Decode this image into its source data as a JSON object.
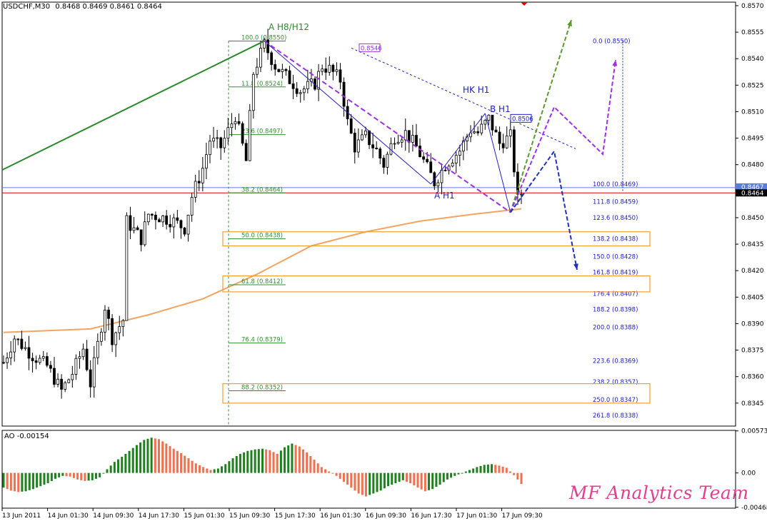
{
  "header": {
    "symbol": "USDCHF,M30",
    "ohlc": "0.8468 0.8469 0.8461 0.8464"
  },
  "indicator": {
    "title": "AO -0.00154"
  },
  "watermark": "MF Analytics Team",
  "colors": {
    "bull": "#000000",
    "ma": "#f4a460",
    "bid": "#e00000",
    "ask": "#5b7fd6",
    "fib_left": "#2f8f2f",
    "fib_right": "#2020c0",
    "zone": "#f0a030",
    "ao_up": "#208020",
    "ao_down": "#f07050",
    "wm_red": "#e04090",
    "wm_blue": "#3040e0"
  },
  "wave_labels": {
    "a_h8_h12": "A H8/H12",
    "hk_h1": "HK H1",
    "b_h1": "B H1",
    "a_h1": "A H1"
  },
  "chart_data": [
    {
      "type": "candlestick",
      "title": "USDCHF,M30",
      "ylim": [
        0.8332,
        0.8572
      ],
      "y_ticks": [
        "0.8570",
        "0.8555",
        "0.8540",
        "0.8525",
        "0.8510",
        "0.8495",
        "0.8480",
        "0.8465",
        "0.8450",
        "0.8435",
        "0.8420",
        "0.8405",
        "0.8390",
        "0.8375",
        "0.8360",
        "0.8345"
      ],
      "x_ticks": [
        "13 Jun 2011",
        "14 Jun 01:30",
        "14 Jun 09:30",
        "14 Jun 17:30",
        "15 Jun 01:30",
        "15 Jun 09:30",
        "15 Jun 17:30",
        "16 Jun 01:30",
        "16 Jun 09:30",
        "16 Jun 17:30",
        "17 Jun 01:30",
        "17 Jun 09:30"
      ],
      "price_path": [
        [
          0,
          0.8368
        ],
        [
          3,
          0.8382
        ],
        [
          8,
          0.8372
        ],
        [
          12,
          0.8366
        ],
        [
          16,
          0.8352
        ],
        [
          19,
          0.8362
        ],
        [
          22,
          0.8376
        ],
        [
          24,
          0.8356
        ],
        [
          28,
          0.84
        ],
        [
          30,
          0.8382
        ],
        [
          33,
          0.8392
        ],
        [
          34,
          0.8448
        ],
        [
          38,
          0.8438
        ],
        [
          40,
          0.8452
        ],
        [
          44,
          0.845
        ],
        [
          47,
          0.8448
        ],
        [
          50,
          0.8444
        ],
        [
          52,
          0.8462
        ],
        [
          55,
          0.8478
        ],
        [
          57,
          0.8494
        ],
        [
          60,
          0.849
        ],
        [
          64,
          0.8508
        ],
        [
          67,
          0.8482
        ],
        [
          69,
          0.8532
        ],
        [
          72,
          0.8548
        ],
        [
          75,
          0.8536
        ],
        [
          78,
          0.853
        ],
        [
          82,
          0.8522
        ],
        [
          86,
          0.8526
        ],
        [
          88,
          0.8536
        ],
        [
          90,
          0.8534
        ],
        [
          93,
          0.8528
        ],
        [
          95,
          0.8504
        ],
        [
          97,
          0.849
        ],
        [
          100,
          0.8496
        ],
        [
          103,
          0.8488
        ],
        [
          105,
          0.848
        ],
        [
          108,
          0.8496
        ],
        [
          111,
          0.8498
        ],
        [
          114,
          0.849
        ],
        [
          117,
          0.8478
        ],
        [
          119,
          0.847
        ],
        [
          122,
          0.848
        ],
        [
          126,
          0.8488
        ],
        [
          129,
          0.85
        ],
        [
          131,
          0.8498
        ],
        [
          134,
          0.8506
        ],
        [
          137,
          0.8492
        ],
        [
          140,
          0.8496
        ],
        [
          142,
          0.846
        ],
        [
          143,
          0.8464
        ]
      ],
      "price_lines": {
        "ask": "0.8467",
        "bid": "0.8464"
      },
      "moving_average": [
        [
          0,
          0.8385
        ],
        [
          24,
          0.8387
        ],
        [
          40,
          0.8395
        ],
        [
          55,
          0.8404
        ],
        [
          70,
          0.8418
        ],
        [
          85,
          0.8434
        ],
        [
          100,
          0.8442
        ],
        [
          115,
          0.8448
        ],
        [
          130,
          0.8452
        ],
        [
          143,
          0.8455
        ]
      ],
      "fib_retracement": {
        "levels": [
          {
            "label": "100.0 (0.8550)",
            "value": 0.855
          },
          {
            "label": "11.8 (0.8524)",
            "value": 0.8524
          },
          {
            "label": "23.6 (0.8497)",
            "value": 0.8497
          },
          {
            "label": "38.2 (0.8464)",
            "value": 0.8464
          },
          {
            "label": "50.0 (0.8438)",
            "value": 0.8438
          },
          {
            "label": "61.8 (0.8412)",
            "value": 0.8412
          },
          {
            "label": "76.4 (0.8379)",
            "value": 0.8379
          },
          {
            "label": "88.2 (0.8352)",
            "value": 0.8352
          }
        ]
      },
      "fib_extension": {
        "levels": [
          {
            "label": "0.0 (0.8550)",
            "value": 0.855
          },
          {
            "label": "100.0 (0.8469)",
            "value": 0.8469
          },
          {
            "label": "111.8 (0.8459)",
            "value": 0.8459
          },
          {
            "label": "123.6 (0.8450)",
            "value": 0.845
          },
          {
            "label": "138.2 (0.8438)",
            "value": 0.8438
          },
          {
            "label": "150.0 (0.8428)",
            "value": 0.8428
          },
          {
            "label": "161.8 (0.8419)",
            "value": 0.8419
          },
          {
            "label": "176.4 (0.8407)",
            "value": 0.8407
          },
          {
            "label": "188.2 (0.8398)",
            "value": 0.8398
          },
          {
            "label": "200.0 (0.8388)",
            "value": 0.8388
          },
          {
            "label": "223.6 (0.8369)",
            "value": 0.8369
          },
          {
            "label": "238.2 (0.8357)",
            "value": 0.8357
          },
          {
            "label": "250.0 (0.8347)",
            "value": 0.8347
          },
          {
            "label": "261.8 (0.8338)",
            "value": 0.8338
          }
        ]
      },
      "price_tags": [
        "0.8546",
        "0.8506"
      ],
      "zones": [
        [
          0.8434,
          0.8442
        ],
        [
          0.8408,
          0.8417
        ],
        [
          0.8345,
          0.8356
        ]
      ]
    },
    {
      "type": "bar",
      "title": "AO -0.00154",
      "ylim": [
        -0.0048,
        0.0058
      ],
      "y_ticks": [
        "0.00573",
        "0.00",
        "-0.00468"
      ],
      "values": [
        -0.002,
        -0.0024,
        -0.0026,
        -0.0025,
        -0.0022,
        -0.0018,
        -0.0014,
        -0.0008,
        -0.0004,
        -0.0005,
        -0.0009,
        -0.0011,
        -0.001,
        -0.0006,
        0.0005,
        0.0015,
        0.0022,
        0.003,
        0.0038,
        0.0045,
        0.0048,
        0.0046,
        0.004,
        0.0033,
        0.0027,
        0.002,
        0.0013,
        0.0008,
        0.0004,
        0.0006,
        0.0012,
        0.002,
        0.0026,
        0.003,
        0.0032,
        0.0033,
        0.0031,
        0.0026,
        0.0035,
        0.004,
        0.0036,
        0.0028,
        0.0018,
        0.0008,
        0.0002,
        -0.0004,
        -0.0012,
        -0.002,
        -0.0028,
        -0.0032,
        -0.0028,
        -0.0024,
        -0.0018,
        -0.0014,
        -0.001,
        -0.0014,
        -0.002,
        -0.0025,
        -0.0022,
        -0.0016,
        -0.0009,
        -0.0004,
        0.0,
        0.0004,
        0.0008,
        0.0011,
        0.0012,
        0.001,
        0.0007,
        -0.0003,
        -0.0015
      ]
    }
  ]
}
